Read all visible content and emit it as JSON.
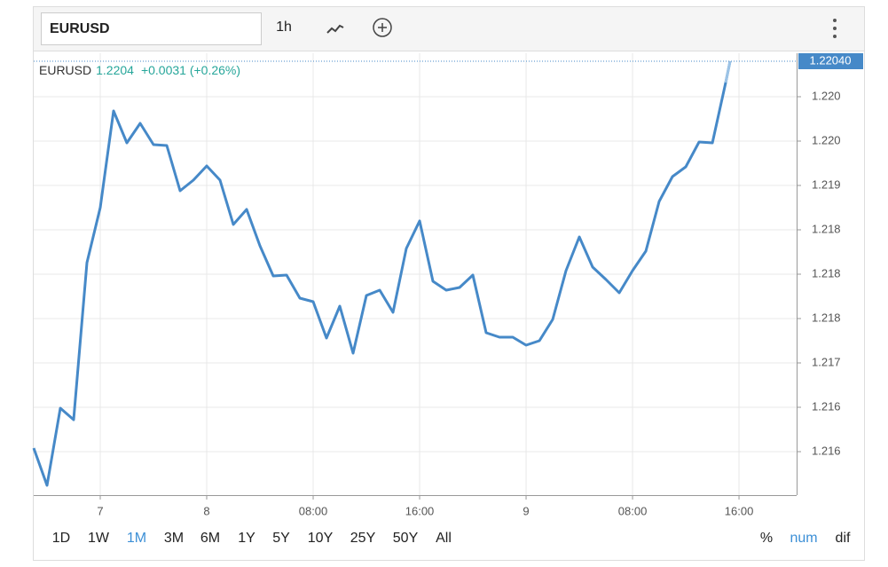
{
  "toolbar": {
    "symbol": "EURUSD",
    "interval": "1h"
  },
  "legend": {
    "symbol": "EURUSD",
    "price": "1.2204",
    "change": "+0.0031 (+0.26%)"
  },
  "chart_data": {
    "type": "line",
    "x": [
      0,
      1,
      2,
      3,
      4,
      5,
      6,
      7,
      8,
      9,
      10,
      11,
      12,
      13,
      14,
      15,
      16,
      17,
      18,
      19,
      20,
      21,
      22,
      23,
      24,
      25,
      26,
      27,
      28,
      29,
      30,
      31,
      32,
      33,
      34,
      35,
      36,
      37,
      38,
      39,
      40,
      41,
      42,
      43,
      44,
      45,
      46,
      47,
      48,
      49,
      50,
      51,
      52,
      52.33
    ],
    "series": [
      {
        "name": "EURUSD",
        "color": "#4689c8",
        "values": [
          1.21604,
          1.21562,
          1.21649,
          1.21636,
          1.21813,
          1.21875,
          1.21984,
          1.21948,
          1.2197,
          1.21946,
          1.21945,
          1.21894,
          1.21906,
          1.21922,
          1.21906,
          1.21856,
          1.21873,
          1.21832,
          1.21798,
          1.21799,
          1.21773,
          1.21769,
          1.21728,
          1.21764,
          1.21711,
          1.21776,
          1.21782,
          1.21757,
          1.21829,
          1.2186,
          1.21792,
          1.21782,
          1.21785,
          1.21799,
          1.21734,
          1.21729,
          1.21729,
          1.2172,
          1.21725,
          1.21749,
          1.21804,
          1.21842,
          1.21808,
          1.21794,
          1.21779,
          1.21804,
          1.21826,
          1.21882,
          1.2191,
          1.21921,
          1.21949,
          1.21948,
          1.22016,
          1.2204
        ]
      }
    ],
    "last_segment_color": "#9cc3e6",
    "price_marker": {
      "value": 1.2204,
      "label": "1.22040"
    },
    "xlim": [
      0,
      57.33
    ],
    "xticks": [
      {
        "value": 5,
        "label": "7"
      },
      {
        "value": 13,
        "label": "8"
      },
      {
        "value": 21,
        "label": "08:00"
      },
      {
        "value": 29,
        "label": "16:00"
      },
      {
        "value": 37,
        "label": "9"
      },
      {
        "value": 45,
        "label": "08:00"
      },
      {
        "value": 53,
        "label": "16:00"
      }
    ],
    "ylim": [
      1.21551,
      1.22049
    ],
    "yticks": [
      {
        "value": 1.22,
        "label": "1.220"
      },
      {
        "value": 1.2195,
        "label": "1.220"
      },
      {
        "value": 1.219,
        "label": "1.219"
      },
      {
        "value": 1.2185,
        "label": "1.218"
      },
      {
        "value": 1.218,
        "label": "1.218"
      },
      {
        "value": 1.2175,
        "label": "1.218"
      },
      {
        "value": 1.217,
        "label": "1.217"
      },
      {
        "value": 1.2165,
        "label": "1.216"
      },
      {
        "value": 1.216,
        "label": "1.216"
      }
    ],
    "grid": true
  },
  "ranges": [
    "1D",
    "1W",
    "1M",
    "3M",
    "6M",
    "1Y",
    "5Y",
    "10Y",
    "25Y",
    "50Y",
    "All"
  ],
  "active_range": 2,
  "scale_modes": [
    "%",
    "num",
    "dif"
  ],
  "active_scale_mode": 1
}
